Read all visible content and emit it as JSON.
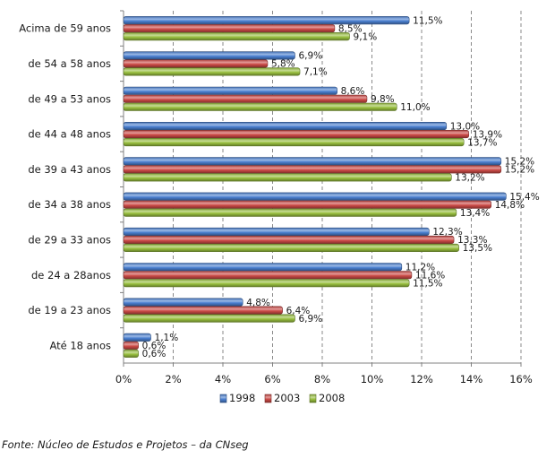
{
  "chart_data": {
    "type": "bar",
    "orientation": "horizontal",
    "categories": [
      "Acima de 59 anos",
      "de 54  a 58 anos",
      "de 49 a 53 anos",
      "de 44 a 48 anos",
      "de 39 a 43 anos",
      "de 34 a 38 anos",
      "de 29 a 33 anos",
      "de 24 a 28anos",
      "de 19 a 23 anos",
      "Até 18 anos"
    ],
    "series": [
      {
        "name": "1998",
        "color": "#4a7fd0",
        "values": [
          11.5,
          6.9,
          8.6,
          13.0,
          15.2,
          15.4,
          12.3,
          11.2,
          4.8,
          1.1
        ],
        "labels": [
          "11,5%",
          "6,9%",
          "8,6%",
          "13,0%",
          "15,2%",
          "15,4%",
          "12,3%",
          "11,2%",
          "4,8%",
          "1,1%"
        ]
      },
      {
        "name": "2003",
        "color": "#cc4a46",
        "values": [
          8.5,
          5.8,
          9.8,
          13.9,
          15.2,
          14.8,
          13.3,
          11.6,
          6.4,
          0.6
        ],
        "labels": [
          "8,5%",
          "5,8%",
          "9,8%",
          "13,9%",
          "15,2%",
          "14,8%",
          "13,3%",
          "11,6%",
          "6,4%",
          "0,6%"
        ]
      },
      {
        "name": "2008",
        "color": "#98bf3e",
        "values": [
          9.1,
          7.1,
          11.0,
          13.7,
          13.2,
          13.4,
          13.5,
          11.5,
          6.9,
          0.6
        ],
        "labels": [
          "9,1%",
          "7,1%",
          "11,0%",
          "13,7%",
          "13,2%",
          "13,4%",
          "13,5%",
          "11,5%",
          "6,9%",
          "0,6%"
        ]
      }
    ],
    "x_ticks": [
      "0%",
      "2%",
      "4%",
      "6%",
      "8%",
      "10%",
      "12%",
      "14%",
      "16%"
    ],
    "xlim": [
      0,
      16
    ],
    "grid": "vertical dashed",
    "legend": "bottom"
  },
  "source_text": "Fonte: Núcleo de Estudos e Projetos – da  CNseg"
}
